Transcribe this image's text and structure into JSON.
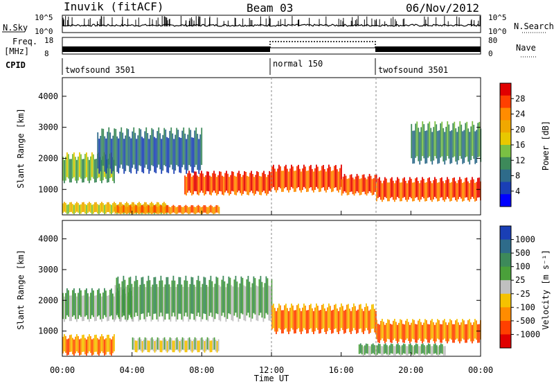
{
  "header": {
    "station": "Inuvik (fitACF)",
    "beam": "Beam 03",
    "date": "06/Nov/2012"
  },
  "top_panels": {
    "nsky_label": "N.Sky",
    "nsky_ticks": [
      "10^5",
      "10^0"
    ],
    "nsearch_label": "N.Search",
    "nsearch_ticks": [
      "10^5",
      "10^0"
    ],
    "freq_label_1": "Freq.",
    "freq_label_2": "[MHz]",
    "freq_ticks": [
      "18",
      "8"
    ],
    "nave_label": "Nave",
    "nave_ticks": [
      "80",
      "0"
    ],
    "cpid_label": "CPID",
    "cpid_segments": [
      {
        "label": "twofsound 3501",
        "start": 0,
        "end": 12
      },
      {
        "label": "normal 150",
        "start": 12,
        "end": 18
      },
      {
        "label": "twofsound 3501",
        "start": 18,
        "end": 24
      }
    ]
  },
  "x_axis": {
    "label": "Time UT",
    "ticks": [
      "00:00",
      "04:00",
      "08:00",
      "12:00",
      "16:00",
      "20:00",
      "00:00"
    ]
  },
  "power_panel": {
    "ylabel": "Slant Range [km]",
    "yticks": [
      "4000",
      "3000",
      "2000",
      "1000"
    ],
    "colorbar_label": "Power [dB]",
    "colorbar_ticks": [
      "28",
      "24",
      "20",
      "16",
      "12",
      "8",
      "4"
    ],
    "colors": [
      "#e00000",
      "#ff4000",
      "#ff8c00",
      "#f0a800",
      "#e8c800",
      "#7ac043",
      "#3d8a5a",
      "#2e6b8a",
      "#1a3fb5",
      "#0000ff"
    ]
  },
  "velocity_panel": {
    "ylabel": "Slant Range [km]",
    "yticks": [
      "4000",
      "3000",
      "2000",
      "1000"
    ],
    "colorbar_label": "Velocity [m s⁻¹]",
    "colorbar_ticks": [
      "1000",
      "500",
      "100",
      "25",
      "-25",
      "-100",
      "-500",
      "-1000"
    ],
    "colors": [
      "#1a3fb5",
      "#2e6b8a",
      "#3d8a5a",
      "#4aa03a",
      "#c0c0c0",
      "#f5c200",
      "#ff8c00",
      "#ff4000",
      "#e00000"
    ]
  },
  "chart_data": [
    {
      "type": "heatmap",
      "title": "Power [dB]",
      "xlabel": "Time UT",
      "ylabel": "Slant Range [km]",
      "xlim": [
        0,
        24
      ],
      "ylim": [
        180,
        4600
      ],
      "clim": [
        0,
        30
      ],
      "regions": [
        {
          "t0": 0,
          "t1": 3,
          "r0": 1200,
          "r1": 2200,
          "v": 14
        },
        {
          "t0": 0,
          "t1": 6,
          "r0": 200,
          "r1": 600,
          "v": 16
        },
        {
          "t0": 3,
          "t1": 9,
          "r0": 200,
          "r1": 500,
          "v": 22
        },
        {
          "t0": 7,
          "t1": 12,
          "r0": 800,
          "r1": 1600,
          "v": 26
        },
        {
          "t0": 12,
          "t1": 16,
          "r0": 900,
          "r1": 1800,
          "v": 27
        },
        {
          "t0": 16,
          "t1": 18,
          "r0": 800,
          "r1": 1500,
          "v": 26
        },
        {
          "t0": 18,
          "t1": 24,
          "r0": 600,
          "r1": 1400,
          "v": 28
        },
        {
          "t0": 2,
          "t1": 8,
          "r0": 1500,
          "r1": 3000,
          "v": 8
        },
        {
          "t0": 20,
          "t1": 24,
          "r0": 1800,
          "r1": 3200,
          "v": 10
        }
      ]
    },
    {
      "type": "heatmap",
      "title": "Velocity",
      "xlabel": "Time UT",
      "ylabel": "Slant Range [km]",
      "xlim": [
        0,
        24
      ],
      "ylim": [
        180,
        4600
      ],
      "clim": [
        -1000,
        1000
      ],
      "regions": [
        {
          "t0": 0,
          "t1": 4,
          "r0": 1300,
          "r1": 2400,
          "v": 150
        },
        {
          "t0": 0,
          "t1": 3,
          "r0": 200,
          "r1": 900,
          "v": -400
        },
        {
          "t0": 3,
          "t1": 12,
          "r0": 1300,
          "r1": 2800,
          "v": 200
        },
        {
          "t0": 4,
          "t1": 9,
          "r0": 300,
          "r1": 800,
          "v": 0
        },
        {
          "t0": 12,
          "t1": 18,
          "r0": 900,
          "r1": 1900,
          "v": -500
        },
        {
          "t0": 18,
          "t1": 24,
          "r0": 600,
          "r1": 1400,
          "v": -600
        },
        {
          "t0": 17,
          "t1": 22,
          "r0": 200,
          "r1": 600,
          "v": 150
        }
      ]
    }
  ]
}
